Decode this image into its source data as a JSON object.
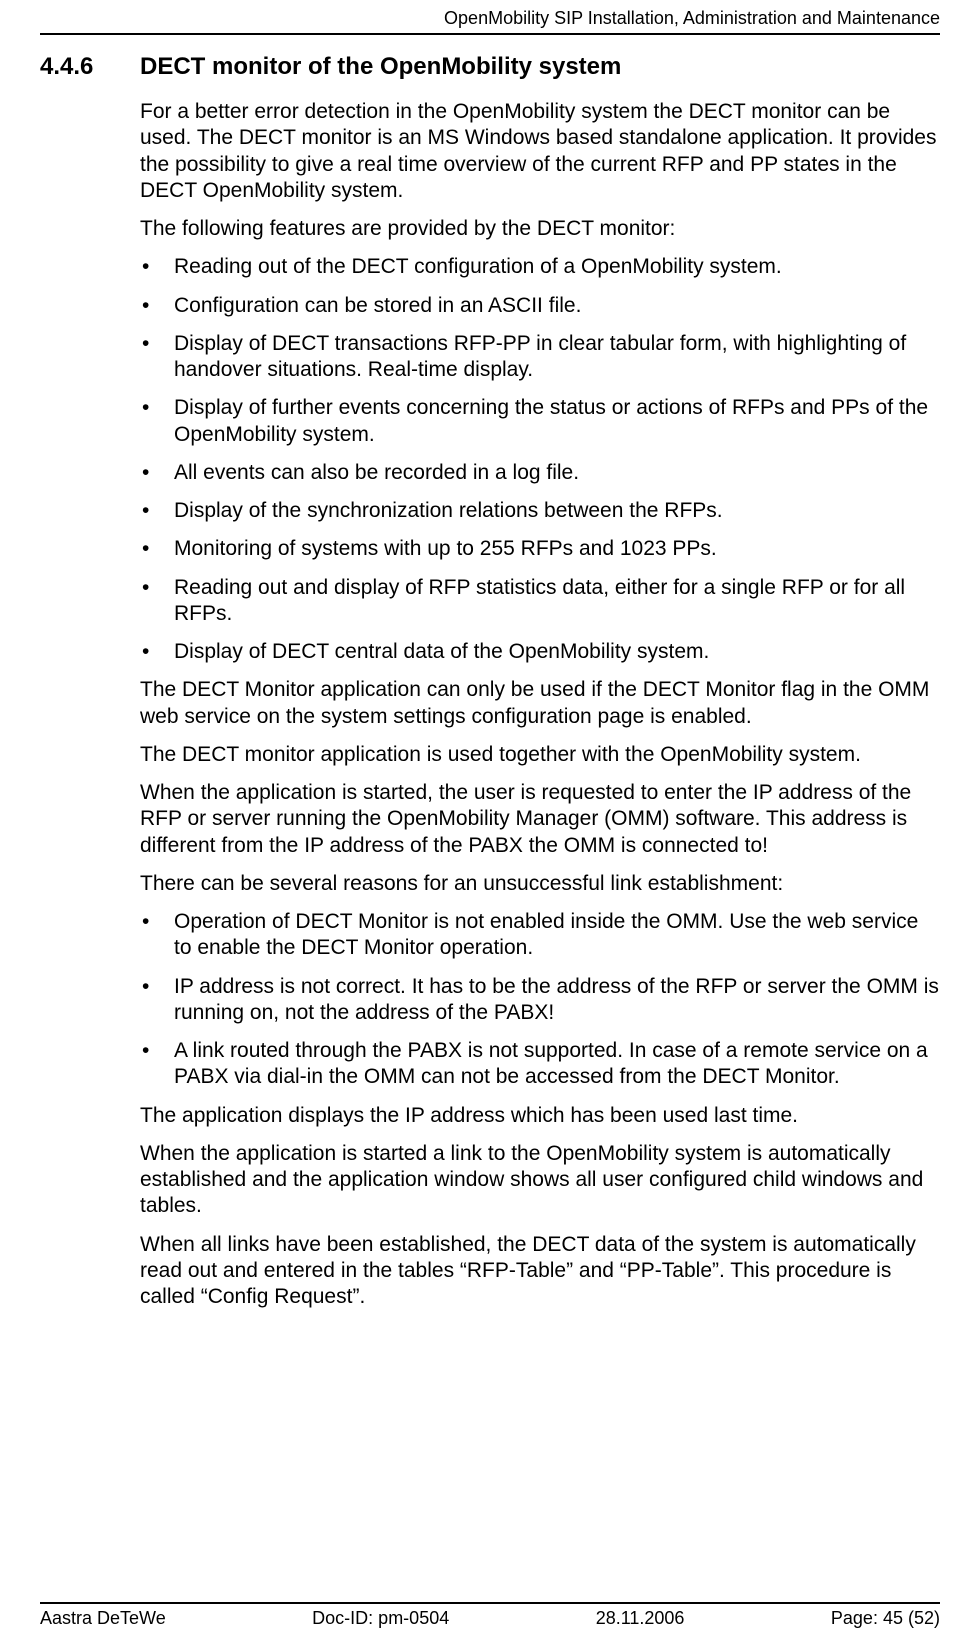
{
  "header": {
    "title": "OpenMobility SIP Installation, Administration and Maintenance"
  },
  "section": {
    "number": "4.4.6",
    "title": "DECT monitor of the OpenMobility system"
  },
  "body": {
    "p1": "For a better error detection in the OpenMobility system the DECT monitor can be used. The DECT monitor is an MS Windows based standalone application. It provides the possibility to give a real time overview of the current RFP and PP states in the DECT OpenMobility system.",
    "p2": "The following features are provided by the DECT monitor:",
    "list1": [
      "Reading out of the DECT configuration of a OpenMobility system.",
      "Configuration can be stored in an ASCII file.",
      "Display of DECT transactions RFP-PP in clear tabular form, with highlighting of handover situations. Real-time display.",
      "Display of further events concerning the status or actions of RFPs and PPs of the OpenMobility system.",
      "All events can also be recorded in a log file.",
      "Display of the synchronization relations between the RFPs.",
      "Monitoring of systems with up to 255 RFPs and 1023 PPs.",
      "Reading out and display of RFP statistics data, either for a single RFP or for all RFPs.",
      "Display of DECT central data of the OpenMobility system."
    ],
    "p3": "The DECT Monitor application can only be used if the DECT Monitor flag in the OMM web service on the system settings configuration page is enabled.",
    "p4": "The DECT monitor application is used together with the OpenMobility system.",
    "p5": "When the application is started, the user is requested to enter the IP address of the RFP or server running the OpenMobility Manager (OMM) software. This address is different from the IP address of the PABX the OMM is connected to!",
    "p6": "There can be several reasons for an unsuccessful link establishment:",
    "list2": [
      "Operation of DECT Monitor is not enabled inside the OMM. Use the web service to enable the DECT Monitor operation.",
      "IP address is not correct. It has to be the address of the RFP or server the OMM is running on, not the address of the PABX!",
      "A link routed through the PABX is not supported. In case of a remote service on a PABX via dial-in the OMM can not be accessed from the DECT Monitor."
    ],
    "p7": "The application displays the IP address which has been used last time.",
    "p8": "When the application is started a link to the OpenMobility system is automatically established and the application window shows all user configured child windows and tables.",
    "p9": "When all links have been established, the DECT data of the system is automatically read out and entered in the tables “RFP-Table” and “PP-Table”. This procedure is called “Config Request”."
  },
  "footer": {
    "company": "Aastra DeTeWe",
    "docid": "Doc-ID: pm-0504",
    "date": "28.11.2006",
    "page": "Page: 45 (52)"
  }
}
